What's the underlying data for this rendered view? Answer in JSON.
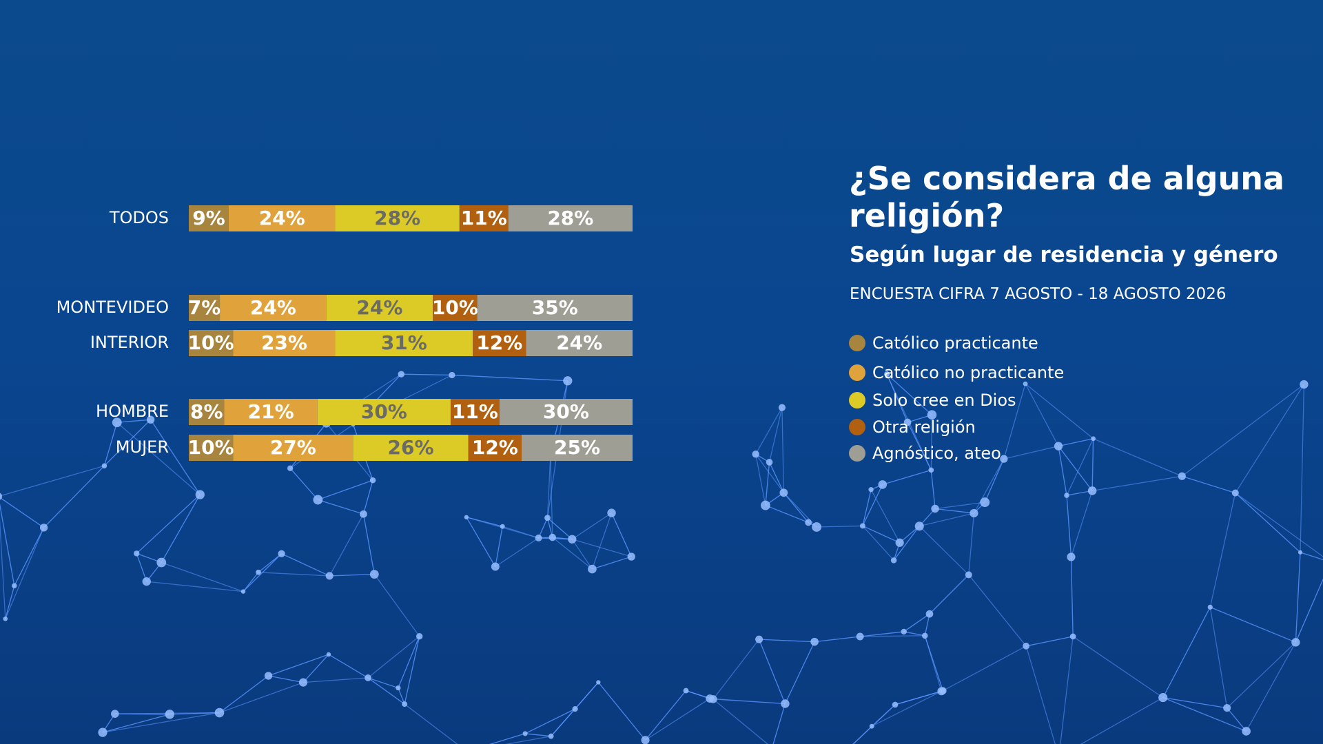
{
  "chart_data": {
    "type": "bar",
    "orientation": "horizontal",
    "stacked": true,
    "title": "¿Se considera de alguna religión?",
    "subtitle": "Según lugar de residencia y género",
    "source": "ENCUESTA CIFRA 7 AGOSTO - 18 AGOSTO 2026",
    "categories": [
      "TODOS",
      "MONTEVIDEO",
      "INTERIOR",
      "HOMBRE",
      "MUJER"
    ],
    "legend": "right",
    "series": [
      {
        "name": "Católico practicante",
        "color": "#a8853f",
        "values": [
          9,
          7,
          10,
          8,
          10
        ],
        "value_labels": [
          "9%",
          "7%",
          "10%",
          "8%",
          "10%"
        ]
      },
      {
        "name": "Católico no practicante",
        "color": "#e0a33c",
        "values": [
          24,
          24,
          23,
          21,
          27
        ],
        "value_labels": [
          "24%",
          "24%",
          "23%",
          "21%",
          "27%"
        ]
      },
      {
        "name": "Solo cree en Dios",
        "color": "#dccb26",
        "values": [
          28,
          24,
          31,
          30,
          26
        ],
        "value_labels": [
          "28%",
          "24%",
          "31%",
          "30%",
          "26%"
        ]
      },
      {
        "name": "Otra religión",
        "color": "#b0600f",
        "values": [
          11,
          10,
          12,
          11,
          12
        ],
        "value_labels": [
          "11%",
          "10%",
          "12%",
          "11%",
          "12%"
        ]
      },
      {
        "name": "Agnóstico, ateo",
        "color": "#9e9e94",
        "values": [
          28,
          35,
          24,
          30,
          25
        ],
        "value_labels": [
          "28%",
          "35%",
          "24%",
          "30%",
          "25%"
        ]
      }
    ]
  }
}
